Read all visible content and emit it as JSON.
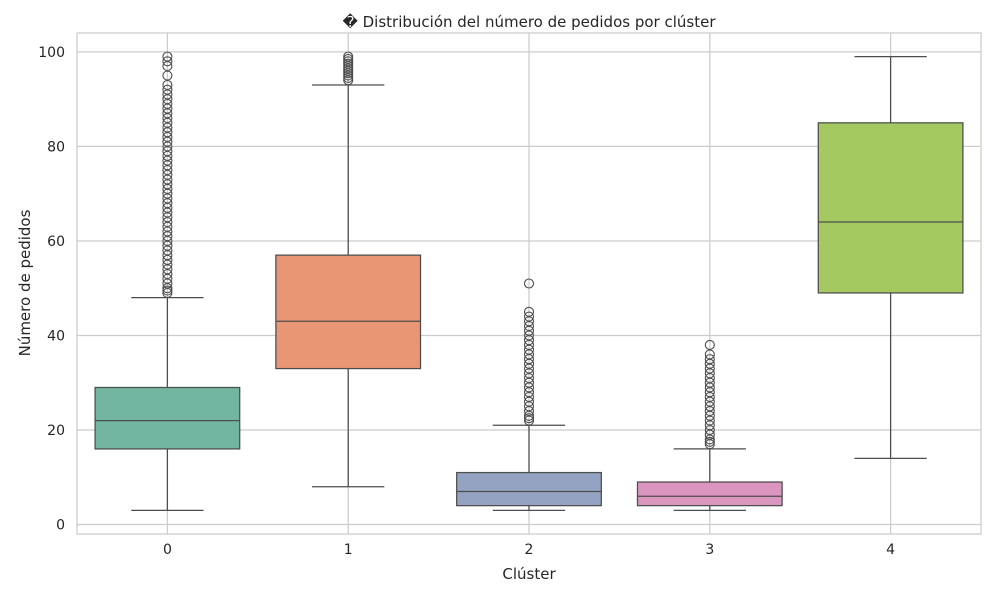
{
  "chart_data": {
    "type": "box",
    "title": "� Distribución del número de pedidos por clúster",
    "xlabel": "Clúster",
    "ylabel": "Número de pedidos",
    "ylim": [
      -2,
      104
    ],
    "yticks": [
      0,
      20,
      40,
      60,
      80,
      100
    ],
    "categories": [
      "0",
      "1",
      "2",
      "3",
      "4"
    ],
    "grid": true,
    "boxes": [
      {
        "cluster": "0",
        "whisker_low": 3,
        "q1": 16,
        "median": 22,
        "q3": 29,
        "whisker_high": 48,
        "color": "#72b6a1",
        "outliers": [
          49,
          49.5,
          50,
          51,
          52,
          53,
          54,
          55,
          56,
          57,
          58,
          59,
          60,
          61,
          62,
          63,
          64,
          65,
          66,
          67,
          68,
          69,
          70,
          71,
          72,
          73,
          74,
          75,
          76,
          77,
          78,
          79,
          80,
          81,
          82,
          83,
          84,
          85,
          86,
          87,
          88,
          89,
          90,
          91,
          92,
          93,
          95,
          97,
          98,
          99
        ]
      },
      {
        "cluster": "1",
        "whisker_low": 8,
        "q1": 33,
        "median": 43,
        "q3": 57,
        "whisker_high": 93,
        "color": "#e99675",
        "outliers": [
          94,
          94.5,
          95,
          95.5,
          96,
          96.5,
          97,
          97.5,
          98,
          98.5,
          99
        ]
      },
      {
        "cluster": "2",
        "whisker_low": 3,
        "q1": 4,
        "median": 7,
        "q3": 11,
        "whisker_high": 21,
        "color": "#95a3c3",
        "outliers": [
          22,
          22.5,
          23,
          24,
          25,
          26,
          27,
          28,
          29,
          30,
          31,
          32,
          33,
          34,
          35,
          36,
          37,
          38,
          39,
          40,
          41,
          42,
          43,
          44,
          45,
          51
        ]
      },
      {
        "cluster": "3",
        "whisker_low": 3,
        "q1": 4,
        "median": 6,
        "q3": 9,
        "whisker_high": 16,
        "color": "#db96c0",
        "outliers": [
          17,
          17.5,
          18,
          19,
          20,
          21,
          22,
          23,
          24,
          25,
          26,
          27,
          28,
          29,
          30,
          31,
          32,
          33,
          34,
          35,
          36,
          38
        ]
      },
      {
        "cluster": "4",
        "whisker_low": 14,
        "q1": 49,
        "median": 64,
        "q3": 85,
        "whisker_high": 99,
        "color": "#a4c960",
        "outliers": []
      }
    ]
  }
}
